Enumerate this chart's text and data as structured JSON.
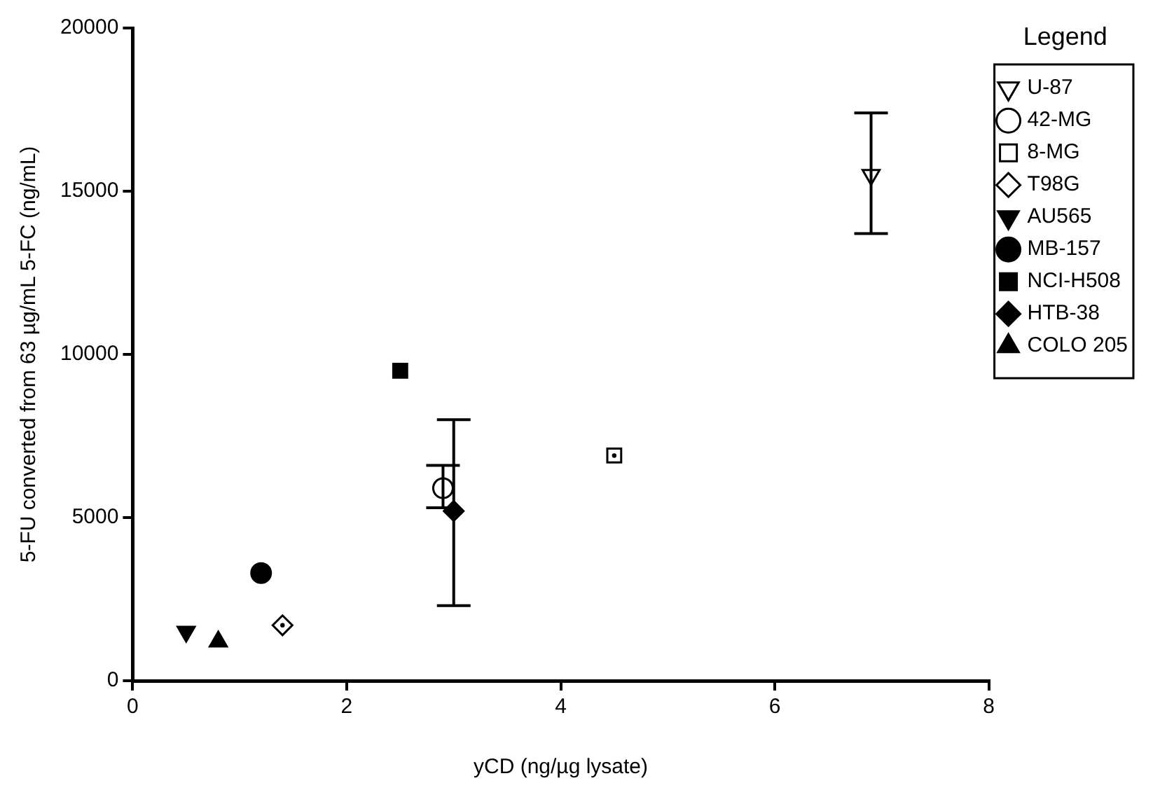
{
  "chart_data": {
    "type": "scatter",
    "xlabel": "yCD (ng/µg lysate)",
    "ylabel": "5-FU converted from 63 µg/mL 5-FC (ng/mL)",
    "legend_title": "Legend",
    "legend": "right",
    "grid": false,
    "xlim": [
      0,
      8
    ],
    "xticks": [
      0,
      2,
      4,
      6,
      8
    ],
    "ylim": [
      0,
      20000
    ],
    "yticks": [
      0,
      5000,
      10000,
      15000,
      20000
    ],
    "series": [
      {
        "name": "U-87",
        "color": "#ffffff",
        "marker": "triangle-down",
        "x": [
          6.9
        ],
        "values": [
          15500
        ],
        "errors": [
          [
            13700,
            17400
          ]
        ]
      },
      {
        "name": "42-MG",
        "color": "#ffffff",
        "marker": "circle",
        "x": [
          2.9
        ],
        "values": [
          5900
        ],
        "errors": [
          [
            5300,
            6600
          ]
        ]
      },
      {
        "name": "8-MG",
        "color": "#ffffff",
        "marker": "square",
        "x": [
          4.5
        ],
        "values": [
          6900
        ]
      },
      {
        "name": "T98G",
        "color": "#ffffff",
        "marker": "diamond",
        "x": [
          1.4
        ],
        "values": [
          1700
        ]
      },
      {
        "name": "AU565",
        "color": "#000000",
        "marker": "triangle-down",
        "x": [
          0.5
        ],
        "values": [
          1500
        ]
      },
      {
        "name": "MB-157",
        "color": "#000000",
        "marker": "circle",
        "x": [
          1.2
        ],
        "values": [
          3300
        ]
      },
      {
        "name": "NCI-H508",
        "color": "#000000",
        "marker": "square",
        "x": [
          2.5
        ],
        "values": [
          9500
        ]
      },
      {
        "name": "HTB-38",
        "color": "#000000",
        "marker": "diamond",
        "x": [
          3.0
        ],
        "values": [
          5200
        ],
        "errors": [
          [
            2300,
            8000
          ]
        ]
      },
      {
        "name": "COLO 205",
        "color": "#000000",
        "marker": "triangle",
        "x": [
          0.8
        ],
        "values": [
          1200
        ]
      }
    ]
  }
}
